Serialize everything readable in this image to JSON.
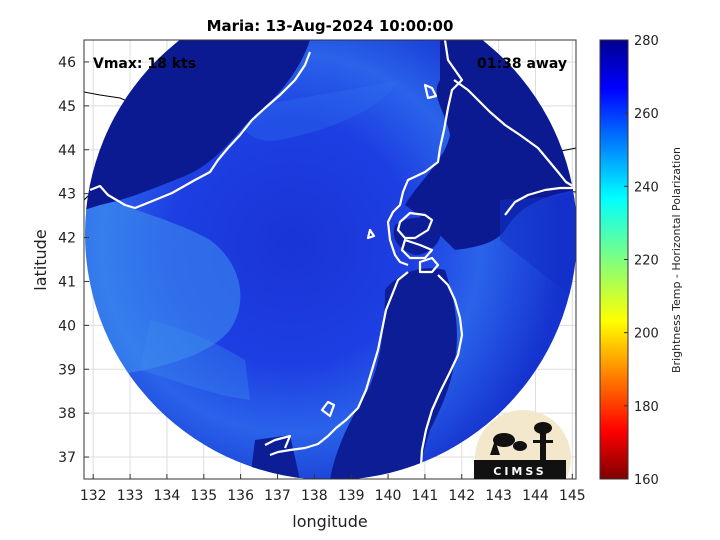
{
  "map": {
    "title": "Maria: 13-Aug-2024 10:00:00",
    "xlabel": "longitude",
    "ylabel": "latitude",
    "vmax_label": "Vmax: 18 kts",
    "away_label": "01:38 away",
    "lon_ticks": [
      "132",
      "133",
      "134",
      "135",
      "136",
      "137",
      "138",
      "139",
      "140",
      "141",
      "142",
      "143",
      "144",
      "145"
    ],
    "lat_ticks": [
      "37",
      "38",
      "39",
      "40",
      "41",
      "42",
      "43",
      "44",
      "45",
      "46"
    ],
    "lon_range": [
      131.75,
      145.1
    ],
    "lat_range": [
      36.5,
      46.5
    ],
    "gridlines": true,
    "coastline_color": "#ffffff"
  },
  "colorbar": {
    "label": "Brightness Temp - Horizontal Polarization",
    "ticks": [
      "160",
      "180",
      "200",
      "220",
      "240",
      "260",
      "280"
    ],
    "range": [
      160,
      280
    ],
    "colormap": "jet"
  },
  "logo": {
    "text": "CIMSS"
  },
  "colors": {
    "deep_blue": "#0a1a8c",
    "mid_blue": "#1f3fe0",
    "light_blue": "#3a8ef0",
    "colorbar_top": "#00008f",
    "colorbar_bottom": "#800000"
  }
}
